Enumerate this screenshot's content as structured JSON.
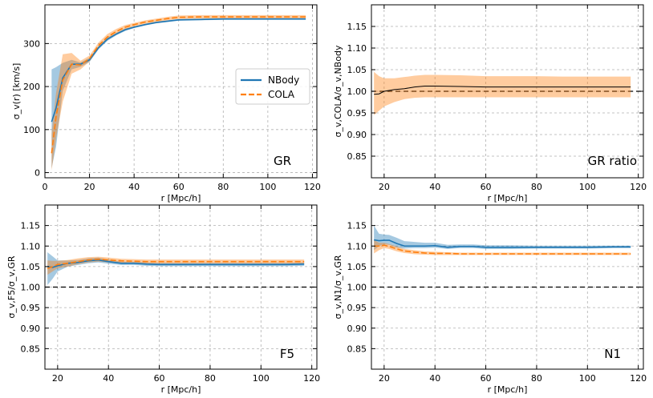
{
  "colors": {
    "nbody": "#1f77b4",
    "cola": "#ff7f0e",
    "reference": "#000000",
    "grid": "#b0b0b0"
  },
  "chart_data": [
    {
      "id": "gr",
      "type": "line",
      "tag": "GR",
      "xlabel": "r [Mpc/h]",
      "ylabel": "σ_v(r) [km/s]",
      "xlim": [
        0,
        122
      ],
      "ylim": [
        -12,
        390
      ],
      "xticks": [
        0,
        20,
        40,
        60,
        80,
        100,
        120
      ],
      "yticks": [
        0,
        100,
        200,
        300
      ],
      "grid": true,
      "legend": {
        "position": "center-right",
        "entries": [
          "NBody",
          "COLA"
        ]
      },
      "series": [
        {
          "name": "NBody",
          "color": "#1f77b4",
          "style": "solid",
          "x": [
            3,
            5,
            8,
            12,
            16,
            20,
            24,
            28,
            32,
            36,
            40,
            45,
            50,
            55,
            60,
            70,
            80,
            90,
            100,
            110,
            117
          ],
          "y": [
            118,
            150,
            220,
            252,
            252,
            262,
            290,
            310,
            322,
            332,
            338,
            344,
            349,
            352,
            355,
            356,
            357,
            357,
            357,
            357,
            357
          ],
          "lower": [
            10,
            60,
            190,
            240,
            246,
            257,
            286,
            306,
            319,
            329,
            336,
            342,
            347,
            350,
            353,
            354,
            355,
            355,
            355,
            355,
            355
          ],
          "upper": [
            240,
            245,
            255,
            262,
            256,
            267,
            294,
            314,
            325,
            335,
            340,
            346,
            351,
            354,
            357,
            358,
            359,
            359,
            359,
            359,
            359
          ]
        },
        {
          "name": "COLA",
          "color": "#ff7f0e",
          "style": "dashed",
          "x": [
            3,
            5,
            8,
            12,
            16,
            20,
            24,
            28,
            32,
            36,
            40,
            45,
            50,
            55,
            60,
            70,
            80,
            90,
            100,
            110,
            117
          ],
          "y": [
            45,
            130,
            215,
            252,
            250,
            265,
            295,
            315,
            328,
            338,
            344,
            350,
            354,
            358,
            361,
            362,
            362,
            362,
            362,
            362,
            362
          ],
          "lower": [
            5,
            80,
            165,
            230,
            240,
            258,
            288,
            308,
            322,
            333,
            340,
            346,
            350,
            354,
            357,
            358,
            358,
            358,
            358,
            358,
            358
          ],
          "upper": [
            90,
            185,
            275,
            278,
            260,
            272,
            302,
            322,
            334,
            343,
            348,
            354,
            358,
            362,
            365,
            366,
            366,
            366,
            366,
            366,
            366
          ]
        }
      ]
    },
    {
      "id": "gr-ratio",
      "type": "line",
      "tag": "GR ratio",
      "xlabel": "r [Mpc/h]",
      "ylabel": "σ_v,COLA/σ_v,NBody",
      "xlim": [
        15,
        122
      ],
      "ylim": [
        0.8,
        1.2
      ],
      "xticks": [
        20,
        40,
        60,
        80,
        100,
        120
      ],
      "yticks": [
        0.85,
        0.9,
        0.95,
        1.0,
        1.05,
        1.1,
        1.15
      ],
      "grid": true,
      "reference": 1.0,
      "series": [
        {
          "name": "",
          "color": "#000000",
          "style": "solid",
          "x": [
            16,
            18,
            20,
            24,
            28,
            32,
            36,
            40,
            50,
            60,
            70,
            80,
            90,
            100,
            110,
            117
          ],
          "y": [
            0.993,
            0.994,
            1.0,
            1.004,
            1.006,
            1.01,
            1.012,
            1.012,
            1.011,
            1.01,
            1.01,
            1.01,
            1.01,
            1.01,
            1.01,
            1.01
          ],
          "lower": [
            0.945,
            0.955,
            0.965,
            0.975,
            0.982,
            0.985,
            0.986,
            0.986,
            0.986,
            0.986,
            0.986,
            0.986,
            0.986,
            0.986,
            0.986,
            0.986
          ],
          "upper": [
            1.045,
            1.035,
            1.03,
            1.03,
            1.033,
            1.036,
            1.038,
            1.038,
            1.037,
            1.035,
            1.035,
            1.035,
            1.034,
            1.034,
            1.034,
            1.034
          ]
        }
      ]
    },
    {
      "id": "f5",
      "type": "line",
      "tag": "F5",
      "xlabel": "r [Mpc/h]",
      "ylabel": "σ_v,F5/σ_v,GR",
      "xlim": [
        15,
        122
      ],
      "ylim": [
        0.8,
        1.2
      ],
      "xticks": [
        20,
        40,
        60,
        80,
        100,
        120
      ],
      "yticks": [
        0.85,
        0.9,
        0.95,
        1.0,
        1.05,
        1.1,
        1.15
      ],
      "grid": true,
      "reference": 1.0,
      "series": [
        {
          "name": "NBody",
          "color": "#1f77b4",
          "style": "solid",
          "x": [
            16,
            18,
            20,
            24,
            28,
            32,
            36,
            40,
            45,
            50,
            55,
            60,
            70,
            80,
            90,
            100,
            110,
            117
          ],
          "y": [
            1.05,
            1.048,
            1.052,
            1.058,
            1.06,
            1.064,
            1.066,
            1.062,
            1.058,
            1.058,
            1.056,
            1.055,
            1.055,
            1.055,
            1.055,
            1.055,
            1.055,
            1.056
          ],
          "lower": [
            1.005,
            1.02,
            1.038,
            1.05,
            1.054,
            1.058,
            1.06,
            1.057,
            1.054,
            1.054,
            1.052,
            1.051,
            1.051,
            1.051,
            1.051,
            1.051,
            1.051,
            1.052
          ],
          "upper": [
            1.085,
            1.075,
            1.065,
            1.065,
            1.066,
            1.07,
            1.072,
            1.067,
            1.062,
            1.062,
            1.06,
            1.059,
            1.059,
            1.059,
            1.059,
            1.059,
            1.059,
            1.06
          ]
        },
        {
          "name": "COLA",
          "color": "#ff7f0e",
          "style": "dashed",
          "x": [
            16,
            18,
            20,
            24,
            28,
            32,
            36,
            40,
            45,
            50,
            55,
            60,
            70,
            80,
            90,
            100,
            110,
            117
          ],
          "y": [
            1.045,
            1.05,
            1.055,
            1.058,
            1.062,
            1.066,
            1.068,
            1.066,
            1.064,
            1.063,
            1.062,
            1.062,
            1.062,
            1.062,
            1.062,
            1.062,
            1.062,
            1.062
          ],
          "lower": [
            1.03,
            1.038,
            1.046,
            1.05,
            1.056,
            1.06,
            1.062,
            1.06,
            1.058,
            1.058,
            1.057,
            1.057,
            1.057,
            1.057,
            1.057,
            1.057,
            1.057,
            1.057
          ],
          "upper": [
            1.065,
            1.064,
            1.064,
            1.066,
            1.07,
            1.073,
            1.074,
            1.072,
            1.069,
            1.068,
            1.067,
            1.067,
            1.067,
            1.067,
            1.067,
            1.067,
            1.067,
            1.067
          ]
        }
      ]
    },
    {
      "id": "n1",
      "type": "line",
      "tag": "N1",
      "xlabel": "r [Mpc/h]",
      "ylabel": "σ_v,N1/σ_v,GR",
      "xlim": [
        15,
        122
      ],
      "ylim": [
        0.8,
        1.2
      ],
      "xticks": [
        20,
        40,
        60,
        80,
        100,
        120
      ],
      "yticks": [
        0.85,
        0.9,
        0.95,
        1.0,
        1.05,
        1.1,
        1.15
      ],
      "grid": true,
      "reference": 1.0,
      "series": [
        {
          "name": "NBody",
          "color": "#1f77b4",
          "style": "solid",
          "x": [
            16,
            18,
            20,
            22,
            25,
            28,
            32,
            36,
            40,
            45,
            50,
            55,
            60,
            70,
            80,
            90,
            100,
            110,
            117
          ],
          "y": [
            1.115,
            1.113,
            1.114,
            1.114,
            1.106,
            1.1,
            1.1,
            1.1,
            1.101,
            1.097,
            1.099,
            1.099,
            1.097,
            1.097,
            1.097,
            1.097,
            1.097,
            1.098,
            1.098
          ],
          "lower": [
            1.09,
            1.1,
            1.104,
            1.103,
            1.096,
            1.094,
            1.095,
            1.095,
            1.096,
            1.093,
            1.095,
            1.095,
            1.093,
            1.093,
            1.094,
            1.094,
            1.094,
            1.095,
            1.095
          ],
          "upper": [
            1.15,
            1.13,
            1.128,
            1.127,
            1.12,
            1.112,
            1.11,
            1.108,
            1.108,
            1.103,
            1.104,
            1.104,
            1.102,
            1.102,
            1.101,
            1.101,
            1.101,
            1.101,
            1.101
          ]
        },
        {
          "name": "COLA",
          "color": "#ff7f0e",
          "style": "dashed",
          "x": [
            16,
            18,
            20,
            22,
            25,
            28,
            32,
            36,
            40,
            45,
            50,
            55,
            60,
            70,
            80,
            90,
            100,
            110,
            117
          ],
          "y": [
            1.1,
            1.1,
            1.102,
            1.099,
            1.093,
            1.088,
            1.085,
            1.083,
            1.082,
            1.082,
            1.081,
            1.081,
            1.081,
            1.081,
            1.081,
            1.081,
            1.081,
            1.081,
            1.081
          ],
          "lower": [
            1.082,
            1.09,
            1.095,
            1.093,
            1.087,
            1.083,
            1.08,
            1.079,
            1.078,
            1.078,
            1.078,
            1.078,
            1.078,
            1.078,
            1.078,
            1.078,
            1.078,
            1.078,
            1.078
          ],
          "upper": [
            1.115,
            1.108,
            1.108,
            1.105,
            1.099,
            1.093,
            1.09,
            1.087,
            1.086,
            1.085,
            1.084,
            1.084,
            1.084,
            1.084,
            1.084,
            1.084,
            1.084,
            1.084,
            1.084
          ]
        }
      ]
    }
  ]
}
